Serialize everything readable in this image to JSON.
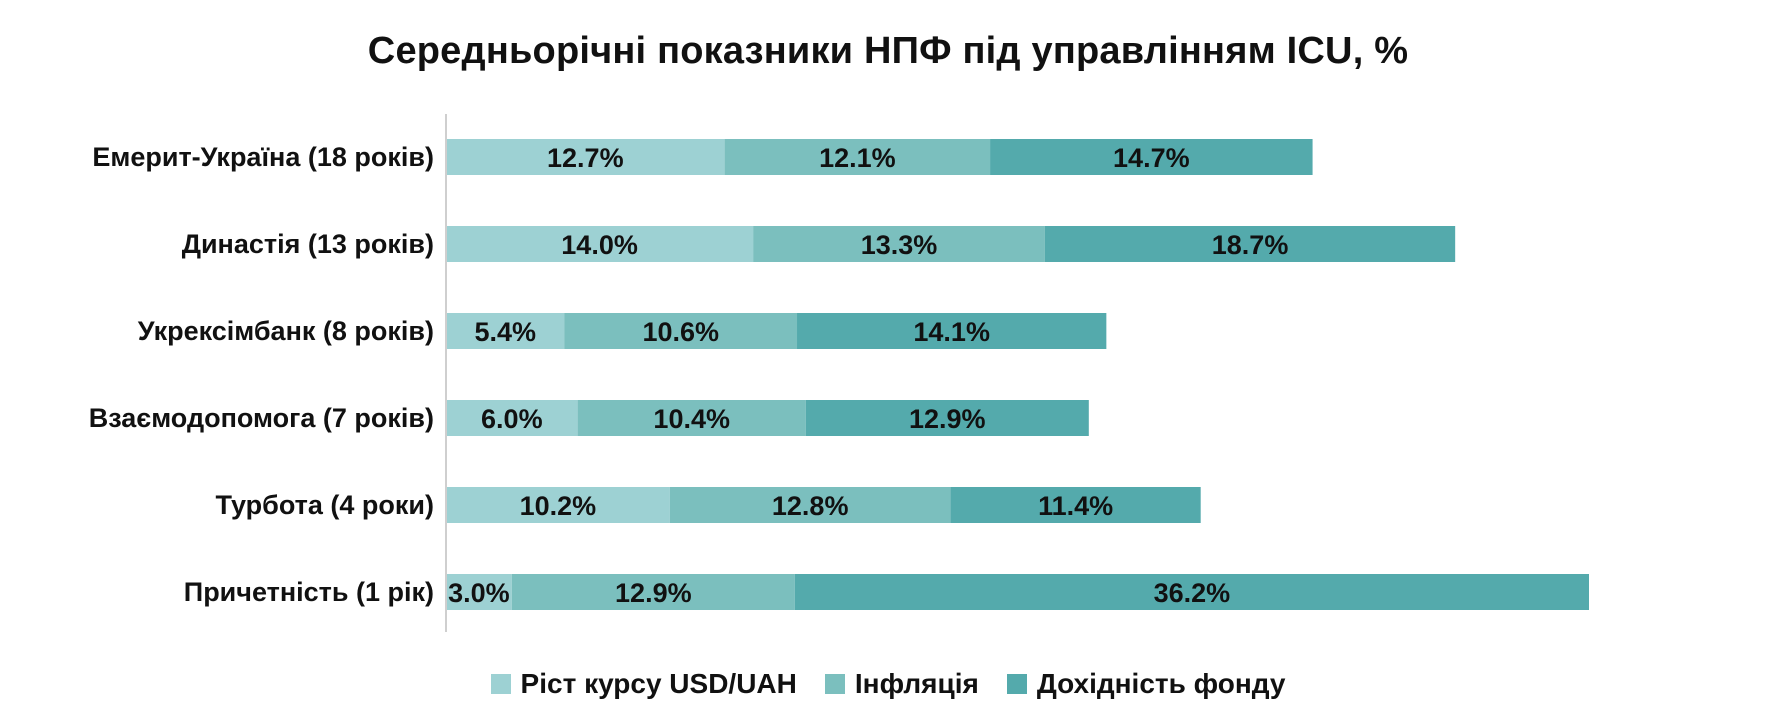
{
  "chart_data": {
    "type": "bar",
    "orientation": "horizontal",
    "stacked": true,
    "title": "Середньорічні показники НПФ під управлінням ICU, %",
    "categories": [
      "Емерит-Україна (18 років)",
      "Династія (13 років)",
      "Укрексімбанк (8 років)",
      "Взаємодопомога (7 років)",
      "Турбота (4 роки)",
      "Причетність (1 рік)"
    ],
    "series": [
      {
        "name": "Ріст курсу USD/UAH",
        "color": "#9dd1d3",
        "values": [
          12.7,
          14.0,
          5.4,
          6.0,
          10.2,
          3.0
        ],
        "labels": [
          "12.7%",
          "14.0%",
          "5.4%",
          "6.0%",
          "10.2%",
          "3.0%"
        ]
      },
      {
        "name": "Інфляція",
        "color": "#7bbfbe",
        "values": [
          12.1,
          13.3,
          10.6,
          10.4,
          12.8,
          12.9
        ],
        "labels": [
          "12.1%",
          "13.3%",
          "10.6%",
          "10.4%",
          "12.8%",
          "12.9%"
        ]
      },
      {
        "name": "Дохідність фонду",
        "color": "#54aaac",
        "values": [
          14.7,
          18.7,
          14.1,
          12.9,
          11.4,
          36.2
        ],
        "labels": [
          "14.7%",
          "18.7%",
          "14.1%",
          "12.9%",
          "11.4%",
          "36.2%"
        ]
      }
    ],
    "xlim": [
      0,
      52.1
    ],
    "grid": false,
    "axis_line_color": "#cfcfcf",
    "legend_position": "bottom"
  }
}
